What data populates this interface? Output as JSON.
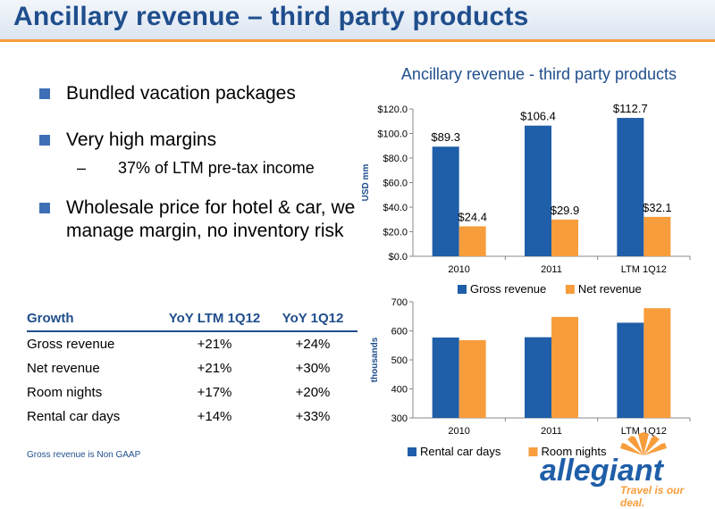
{
  "slide": {
    "title": "Ancillary revenue – third party products",
    "bullets": [
      "Bundled vacation packages",
      "Very high margins",
      "Wholesale price for hotel & car, we manage margin, no inventory risk"
    ],
    "sub_bullet_dash": "–",
    "sub_bullet": "37% of LTM pre-tax income",
    "footnote": "Gross revenue is Non GAAP"
  },
  "growth_table": {
    "headers": [
      "Growth",
      "YoY LTM 1Q12",
      "YoY 1Q12"
    ],
    "rows": [
      [
        "Gross revenue",
        "+21%",
        "+24%"
      ],
      [
        "Net revenue",
        "+21%",
        "+30%"
      ],
      [
        "Room nights",
        "+17%",
        "+20%"
      ],
      [
        "Rental car days",
        "+14%",
        "+33%"
      ]
    ]
  },
  "logo": {
    "wordmark": "allegiant",
    "tagline": "Travel is our deal.",
    "colors": {
      "primary": "#1f5ea8",
      "accent": "#f79d3c"
    }
  },
  "colors": {
    "blue": "#1f5ea8",
    "orange": "#f79d3c",
    "title": "#1f4e8c"
  },
  "chart_data": [
    {
      "type": "bar",
      "title": "Ancillary revenue - third party products",
      "ylabel": "USD mm",
      "categories": [
        "2010",
        "2011",
        "LTM 1Q12"
      ],
      "series": [
        {
          "name": "Gross revenue",
          "values": [
            89.3,
            106.4,
            112.7
          ],
          "labels": [
            "$89.3",
            "$106.4",
            "$112.7"
          ],
          "color": "#1f5ea8"
        },
        {
          "name": "Net revenue",
          "values": [
            24.4,
            29.9,
            32.1
          ],
          "labels": [
            "$24.4",
            "$29.9",
            "$32.1"
          ],
          "color": "#f79d3c"
        }
      ],
      "ylim": [
        0,
        120
      ],
      "yticks": [
        0,
        20,
        40,
        60,
        80,
        100,
        120
      ],
      "ytick_labels": [
        "$0.0",
        "$20.0",
        "$40.0",
        "$60.0",
        "$80.0",
        "$100.0",
        "$120.0"
      ],
      "legend": "bottom",
      "grid": false
    },
    {
      "type": "bar",
      "title": "",
      "ylabel": "thousands",
      "categories": [
        "2010",
        "2011",
        "LTM 1Q12"
      ],
      "series": [
        {
          "name": "Rental car days",
          "values": [
            577,
            578,
            628
          ],
          "color": "#1f5ea8"
        },
        {
          "name": "Room nights",
          "values": [
            568,
            648,
            678
          ],
          "color": "#f79d3c"
        }
      ],
      "ylim": [
        300,
        700
      ],
      "yticks": [
        300,
        400,
        500,
        600,
        700
      ],
      "ytick_labels": [
        "300",
        "400",
        "500",
        "600",
        "700"
      ],
      "legend": "bottom",
      "grid": false
    }
  ]
}
